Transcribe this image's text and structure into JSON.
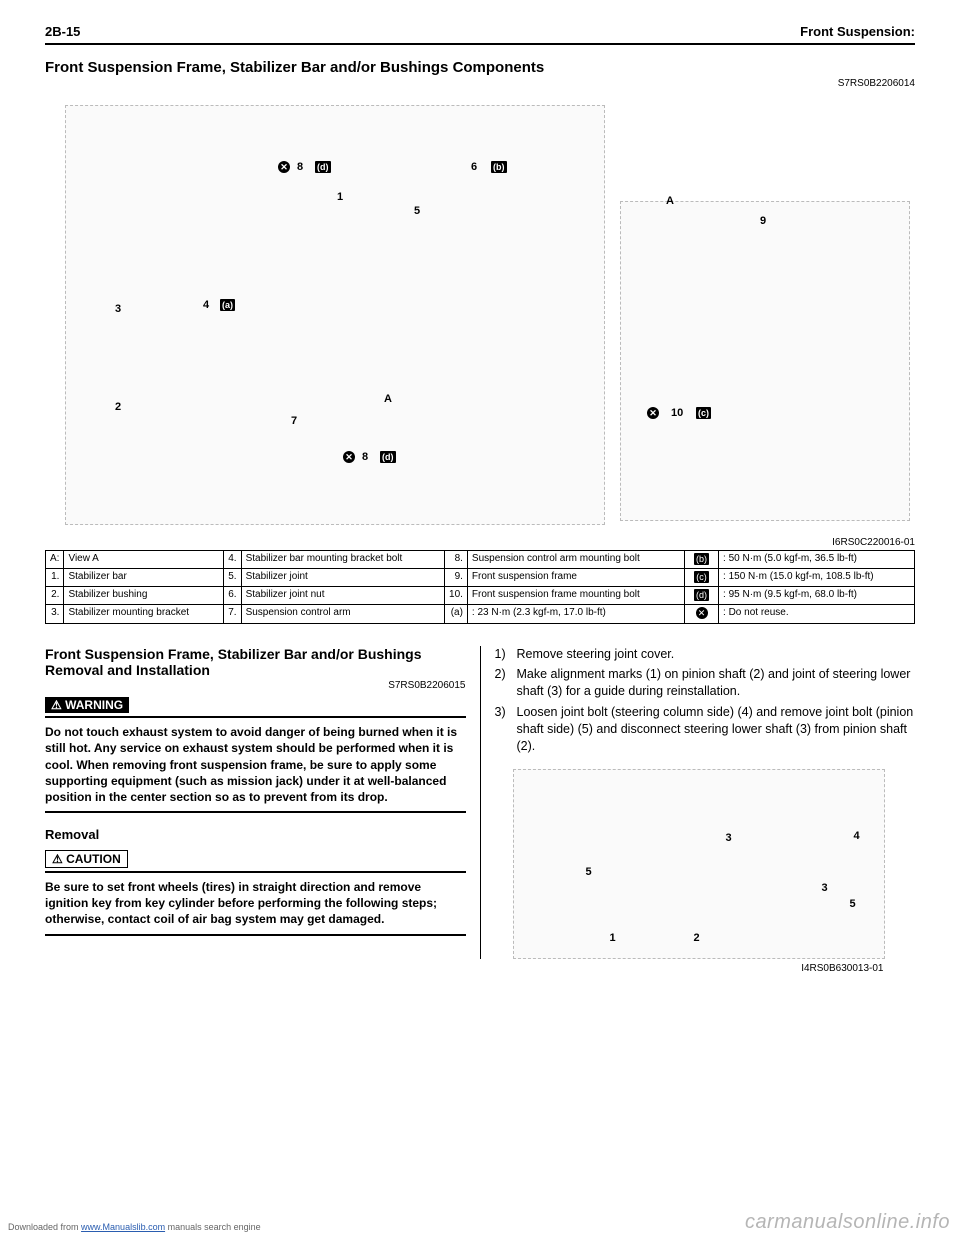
{
  "header": {
    "left": "2B-15",
    "right": "Front Suspension:"
  },
  "section": {
    "title": "Front Suspension Frame, Stabilizer Bar and/or Bushings Components",
    "code": "S7RS0B2206014"
  },
  "diagram": {
    "code": "I6RS0C220016-01",
    "callouts": {
      "c1": "1",
      "c2": "2",
      "c3": "3",
      "c4": "4",
      "c5": "5",
      "c6": "6",
      "c7": "7",
      "c8a": "8",
      "c8b": "8",
      "c9": "9",
      "c10": "10",
      "ca1": "A",
      "ca2": "A",
      "ta": "(a)",
      "tb": "(b)",
      "tc": "(c)",
      "td1": "(d)",
      "td2": "(d)"
    }
  },
  "table": {
    "rows": [
      [
        "A:",
        "View A",
        "4.",
        "Stabilizer bar mounting bracket bolt",
        "8.",
        "Suspension control arm mounting bolt",
        "(b)",
        ": 50 N·m (5.0 kgf-m, 36.5 lb-ft)"
      ],
      [
        "1.",
        "Stabilizer bar",
        "5.",
        "Stabilizer joint",
        "9.",
        "Front suspension frame",
        "(c)",
        ": 150 N·m (15.0 kgf-m, 108.5 lb-ft)"
      ],
      [
        "2.",
        "Stabilizer bushing",
        "6.",
        "Stabilizer joint nut",
        "10.",
        "Front suspension frame mounting bolt",
        "(d)",
        ": 95 N·m (9.5 kgf-m, 68.0 lb-ft)"
      ],
      [
        "3.",
        "Stabilizer mounting bracket",
        "7.",
        "Suspension control arm",
        "(a)",
        ": 23 N·m (2.3 kgf-m, 17.0 lb-ft)",
        "✕",
        ": Do not reuse."
      ]
    ]
  },
  "left": {
    "title": "Front Suspension Frame, Stabilizer Bar and/or Bushings Removal and Installation",
    "code": "S7RS0B2206015",
    "warn_label": "⚠ WARNING",
    "warn_text": "Do not touch exhaust system to avoid danger of being burned when it is still hot.\nAny service on exhaust system should be performed when it is cool.\nWhen removing front suspension frame, be sure to apply some supporting equipment (such as mission jack) under it at well-balanced position in the center section so as to prevent from its drop.",
    "removal": "Removal",
    "caution_label": "⚠ CAUTION",
    "caution_text": "Be sure to set front wheels (tires) in straight direction and remove ignition key from key cylinder before performing the following steps; otherwise, contact coil of air bag system may get damaged."
  },
  "right": {
    "steps": [
      "Remove steering joint cover.",
      "Make alignment marks (1) on pinion shaft (2) and joint of steering lower shaft (3) for a guide during reinstallation.",
      "Loosen joint bolt (steering column side) (4) and remove joint bolt (pinion shaft side) (5) and disconnect steering lower shaft (3) from pinion shaft (2)."
    ],
    "img_code": "I4RS0B630013-01",
    "img_callouts": {
      "i1": "1",
      "i2": "2",
      "i3a": "3",
      "i3b": "3",
      "i4": "4",
      "i5a": "5",
      "i5b": "5"
    }
  },
  "footer": {
    "pre": "Downloaded from ",
    "link": "www.Manualslib.com",
    "post": " manuals search engine"
  },
  "watermark": "carmanualsonline.info"
}
